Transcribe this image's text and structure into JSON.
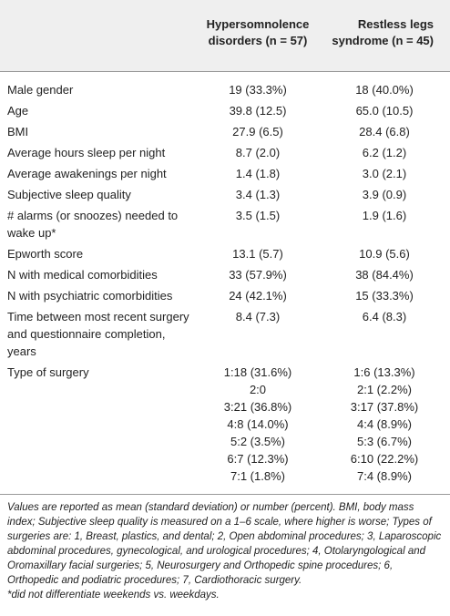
{
  "table": {
    "header": [
      "",
      "Hypersomnolence disorders (n = 57)",
      "Restless legs syndrome (n = 45)"
    ],
    "rows": [
      [
        "Male gender",
        "19 (33.3%)",
        "18 (40.0%)"
      ],
      [
        "Age",
        "39.8 (12.5)",
        "65.0 (10.5)"
      ],
      [
        "BMI",
        "27.9 (6.5)",
        "28.4 (6.8)"
      ],
      [
        "Average hours sleep per night",
        "8.7 (2.0)",
        "6.2 (1.2)"
      ],
      [
        "Average awakenings per night",
        "1.4 (1.8)",
        "3.0 (2.1)"
      ],
      [
        "Subjective sleep quality",
        "3.4 (1.3)",
        "3.9 (0.9)"
      ],
      [
        "# alarms (or snoozes) needed to wake up*",
        "3.5 (1.5)",
        "1.9 (1.6)"
      ],
      [
        "Epworth score",
        "13.1 (5.7)",
        "10.9 (5.6)"
      ],
      [
        "N with medical comorbidities",
        "33 (57.9%)",
        "38 (84.4%)"
      ],
      [
        "N with psychiatric comorbidities",
        "24 (42.1%)",
        "15 (33.3%)"
      ],
      [
        "Time between most recent surgery and questionnaire completion, years",
        "8.4 (7.3)",
        "6.4 (8.3)"
      ],
      [
        "Type of surgery",
        [
          "1:18 (31.6%)",
          "2:0",
          "3:21 (36.8%)",
          "4:8 (14.0%)",
          "5:2 (3.5%)",
          "6:7 (12.3%)",
          "7:1 (1.8%)"
        ],
        [
          "1:6 (13.3%)",
          "2:1 (2.2%)",
          "3:17 (37.8%)",
          "4:4 (8.9%)",
          "5:3 (6.7%)",
          "6:10 (22.2%)",
          "7:4 (8.9%)"
        ]
      ]
    ]
  },
  "footnotes": [
    "Values are reported as mean (standard deviation) or number (percent). BMI, body mass index; Subjective sleep quality is measured on a 1–6 scale, where higher is worse; Types of surgeries are: 1, Breast, plastics, and dental; 2, Open abdominal procedures; 3, Laparoscopic abdominal procedures, gynecological, and urological procedures; 4, Otolaryngological and Oromaxillary facial surgeries; 5, Neurosurgery and Orthopedic spine procedures; 6, Orthopedic and podiatric procedures; 7, Cardiothoracic surgery.",
    "*did not differentiate weekends vs. weekdays."
  ]
}
